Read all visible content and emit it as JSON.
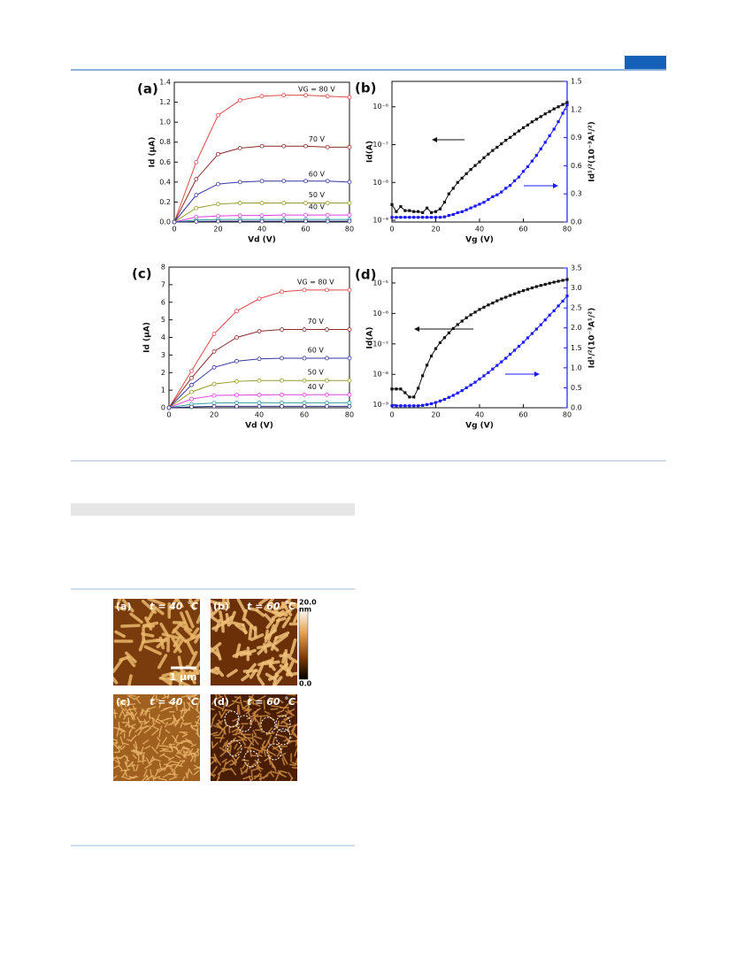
{
  "chart_data": [
    {
      "type": "line",
      "panel_label": "(a)",
      "x_label": "Vd (V)",
      "y_label": "Id (μA)",
      "x": [
        0,
        10,
        20,
        30,
        40,
        50,
        60,
        70,
        80
      ],
      "xlim": [
        0,
        80
      ],
      "xticks": [
        0,
        20,
        40,
        60,
        80
      ],
      "ylim": [
        0,
        1.4
      ],
      "yticks": [
        {
          "value": 0,
          "label": "0.0"
        },
        0.2,
        0.4,
        0.6,
        0.8,
        {
          "value": 1,
          "label": "1.0"
        },
        1.2,
        1.4
      ],
      "series": [
        {
          "name": "VG = 80 V",
          "color": "#e04848",
          "values": [
            0,
            0.6,
            1.07,
            1.22,
            1.26,
            1.27,
            1.27,
            1.26,
            1.25
          ]
        },
        {
          "name": "70 V",
          "color": "#8b2a2a",
          "values": [
            0,
            0.43,
            0.68,
            0.74,
            0.76,
            0.76,
            0.76,
            0.75,
            0.75
          ]
        },
        {
          "name": "60 V",
          "color": "#3434a0",
          "values": [
            0,
            0.27,
            0.38,
            0.4,
            0.41,
            0.41,
            0.41,
            0.41,
            0.4
          ]
        },
        {
          "name": "50 V",
          "color": "#9a9a28",
          "values": [
            0,
            0.14,
            0.18,
            0.19,
            0.19,
            0.19,
            0.19,
            0.19,
            0.19
          ]
        },
        {
          "name": "40 V",
          "color": "#e040e0",
          "values": [
            0,
            0.05,
            0.06,
            0.065,
            0.065,
            0.07,
            0.07,
            0.07,
            0.07
          ]
        },
        {
          "name": null,
          "color": "#30a0a0",
          "values": [
            0,
            0.02,
            0.025,
            0.025,
            0.025,
            0.025,
            0.025,
            0.025,
            0.025
          ]
        },
        {
          "name": null,
          "color": "#303080",
          "values": [
            0,
            0.005,
            0.008,
            0.008,
            0.008,
            0.008,
            0.008,
            0.008,
            0.008
          ]
        }
      ]
    },
    {
      "type": "transfer",
      "panel_label": "(b)",
      "x_label": "Vg (V)",
      "y_label": "Id(A)",
      "y2_label": "Id¹/²(10⁻³A¹/²)",
      "x": [
        0,
        2,
        4,
        6,
        8,
        10,
        12,
        14,
        16,
        18,
        20,
        22,
        24,
        26,
        28,
        30,
        32,
        34,
        36,
        38,
        40,
        42,
        44,
        46,
        48,
        50,
        52,
        54,
        56,
        58,
        60,
        62,
        64,
        66,
        68,
        70,
        72,
        74,
        76,
        78,
        80
      ],
      "xlim": [
        0,
        80
      ],
      "xticks": [
        0,
        20,
        40,
        60,
        80
      ],
      "ylog": true,
      "ylim": [
        9e-10,
        4.7e-06
      ],
      "yticks": [
        {
          "value": 1e-09,
          "label": "10⁻⁹"
        },
        {
          "value": 1e-08,
          "label": "10⁻⁸"
        },
        {
          "value": 1e-07,
          "label": "10⁻⁷"
        },
        {
          "value": 1e-06,
          "label": "10⁻⁶"
        }
      ],
      "y2lim": [
        0,
        1.5
      ],
      "y2ticks": [
        {
          "value": 0,
          "label": "0.0"
        },
        0.3,
        0.6,
        0.9,
        1.2,
        1.5
      ],
      "series": [
        {
          "color": "#111111",
          "values": [
            2.6e-09,
            1.7e-09,
            2.3e-09,
            1.8e-09,
            1.8e-09,
            1.7e-09,
            1.7e-09,
            1.6e-09,
            2.1e-09,
            1.6e-09,
            1.7e-09,
            2e-09,
            3e-09,
            5e-09,
            7e-09,
            1e-08,
            1.3e-08,
            1.7e-08,
            2.2e-08,
            2.8e-08,
            3.5e-08,
            4.5e-08,
            5.6e-08,
            7e-08,
            8.5e-08,
            1.05e-07,
            1.3e-07,
            1.55e-07,
            1.9e-07,
            2.3e-07,
            2.8e-07,
            3.3e-07,
            4e-07,
            4.7e-07,
            5.5e-07,
            6.5e-07,
            7.5e-07,
            8.8e-07,
            1e-06,
            1.15e-06,
            1.3e-06
          ]
        },
        {
          "color": "#1a1aff",
          "axis": "y2",
          "values": [
            0.05,
            0.05,
            0.05,
            0.05,
            0.05,
            0.05,
            0.05,
            0.05,
            0.05,
            0.05,
            0.05,
            0.05,
            0.055,
            0.07,
            0.08,
            0.1,
            0.11,
            0.13,
            0.15,
            0.17,
            0.19,
            0.21,
            0.24,
            0.27,
            0.29,
            0.32,
            0.36,
            0.39,
            0.44,
            0.48,
            0.54,
            0.59,
            0.65,
            0.71,
            0.78,
            0.85,
            0.92,
            0.99,
            1.07,
            1.16,
            1.25
          ]
        }
      ]
    },
    {
      "type": "line",
      "panel_label": "(c)",
      "x_label": "Vd (V)",
      "y_label": "Id (μA)",
      "x": [
        0,
        10,
        20,
        30,
        40,
        50,
        60,
        70,
        80
      ],
      "xlim": [
        0,
        80
      ],
      "xticks": [
        0,
        20,
        40,
        60,
        80
      ],
      "ylim": [
        0,
        8
      ],
      "yticks": [
        0,
        1,
        2,
        3,
        4,
        5,
        6,
        7,
        8
      ],
      "series": [
        {
          "name": "VG = 80 V",
          "color": "#e04848",
          "values": [
            0,
            2.1,
            4.2,
            5.5,
            6.2,
            6.6,
            6.7,
            6.7,
            6.7
          ]
        },
        {
          "name": "70 V",
          "color": "#8b2a2a",
          "values": [
            0,
            1.7,
            3.2,
            4,
            4.35,
            4.45,
            4.45,
            4.45,
            4.45
          ]
        },
        {
          "name": "60 V",
          "color": "#3434a0",
          "values": [
            0,
            1.3,
            2.3,
            2.65,
            2.78,
            2.82,
            2.82,
            2.82,
            2.82
          ]
        },
        {
          "name": "50 V",
          "color": "#9a9a28",
          "values": [
            0,
            0.9,
            1.35,
            1.5,
            1.55,
            1.55,
            1.55,
            1.55,
            1.55
          ]
        },
        {
          "name": "40 V",
          "color": "#e040e0",
          "values": [
            0,
            0.5,
            0.7,
            0.72,
            0.73,
            0.74,
            0.74,
            0.74,
            0.74
          ]
        },
        {
          "name": null,
          "color": "#30a0a0",
          "values": [
            0,
            0.2,
            0.27,
            0.28,
            0.28,
            0.28,
            0.28,
            0.28,
            0.28
          ]
        },
        {
          "name": null,
          "color": "#303080",
          "values": [
            0,
            0.05,
            0.08,
            0.08,
            0.08,
            0.08,
            0.08,
            0.08,
            0.08
          ]
        }
      ]
    },
    {
      "type": "transfer",
      "panel_label": "(d)",
      "x_label": "Vg (V)",
      "y_label": "Id(A)",
      "y2_label": "Id¹/²(10⁻³A¹/²)",
      "x": [
        0,
        2,
        4,
        6,
        8,
        10,
        12,
        14,
        16,
        18,
        20,
        22,
        24,
        26,
        28,
        30,
        32,
        34,
        36,
        38,
        40,
        42,
        44,
        46,
        48,
        50,
        52,
        54,
        56,
        58,
        60,
        62,
        64,
        66,
        68,
        70,
        72,
        74,
        76,
        78,
        80
      ],
      "xlim": [
        0,
        80
      ],
      "xticks": [
        0,
        20,
        40,
        60,
        80
      ],
      "ylog": true,
      "ylim": [
        8e-10,
        3.1e-05
      ],
      "yticks": [
        {
          "value": 1e-09,
          "label": "10⁻⁹"
        },
        {
          "value": 1e-08,
          "label": "10⁻⁸"
        },
        {
          "value": 1e-07,
          "label": "10⁻⁷"
        },
        {
          "value": 1e-06,
          "label": "10⁻⁶"
        },
        {
          "value": 1e-05,
          "label": "10⁻⁵"
        }
      ],
      "y2lim": [
        0,
        3.5
      ],
      "y2ticks": [
        {
          "value": 0,
          "label": "0.0"
        },
        0.5,
        {
          "value": 1,
          "label": "1.0"
        },
        1.5,
        {
          "value": 2,
          "label": "2.0"
        },
        2.5,
        {
          "value": 3,
          "label": "3.0"
        },
        3.5
      ],
      "series": [
        {
          "color": "#111111",
          "values": [
            3.3e-09,
            3.3e-09,
            3.3e-09,
            2.5e-09,
            1.8e-09,
            1.8e-09,
            3.5e-09,
            9e-09,
            2e-08,
            4e-08,
            7e-08,
            1.1e-07,
            1.6e-07,
            2.3e-07,
            3.2e-07,
            4.3e-07,
            5.6e-07,
            7.2e-07,
            9e-07,
            1.1e-06,
            1.35e-06,
            1.6e-06,
            1.9e-06,
            2.2e-06,
            2.6e-06,
            3e-06,
            3.4e-06,
            3.9e-06,
            4.4e-06,
            5e-06,
            5.6e-06,
            6.2e-06,
            6.9e-06,
            7.6e-06,
            8.3e-06,
            9e-06,
            9.8e-06,
            1.06e-05,
            1.14e-05,
            1.22e-05,
            1.3e-05
          ]
        },
        {
          "color": "#1a1aff",
          "axis": "y2",
          "values": [
            0.05,
            0.05,
            0.05,
            0.05,
            0.05,
            0.05,
            0.05,
            0.06,
            0.08,
            0.1,
            0.13,
            0.17,
            0.21,
            0.26,
            0.31,
            0.37,
            0.43,
            0.5,
            0.57,
            0.64,
            0.72,
            0.8,
            0.88,
            0.97,
            1.06,
            1.15,
            1.24,
            1.34,
            1.44,
            1.54,
            1.64,
            1.75,
            1.86,
            1.97,
            2.08,
            2.2,
            2.32,
            2.43,
            2.55,
            2.67,
            2.8
          ]
        }
      ]
    }
  ],
  "figure2": {
    "panels": [
      {
        "label": "(a)",
        "temp": "t = 40 ˚C"
      },
      {
        "label": "(b)",
        "temp": "t = 60 ˚C"
      },
      {
        "label": "(c)",
        "temp": "t = 40 ˚C"
      },
      {
        "label": "(d)",
        "temp": "t = 60 ˚C"
      }
    ],
    "scale_bar": "1 μm",
    "colorbar_max": "20.0",
    "colorbar_unit": "nm",
    "colorbar_min": "0.0"
  }
}
